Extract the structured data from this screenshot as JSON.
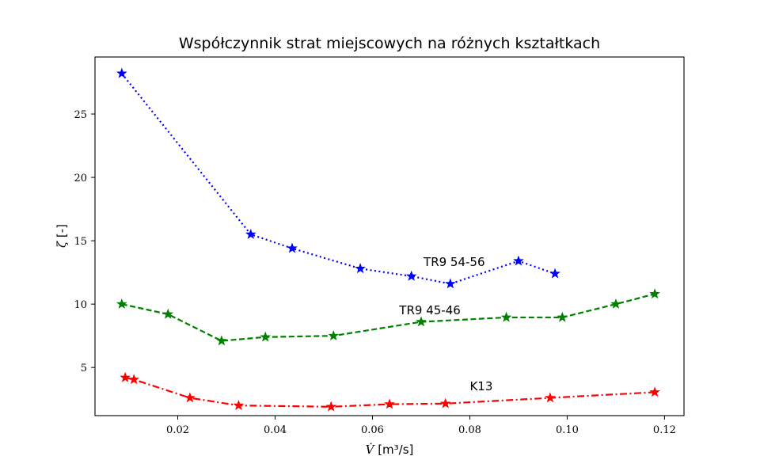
{
  "chart_data": {
    "type": "line",
    "title": "Współczynnik strat miejscowych na różnych kształtkach",
    "xlabel_symbol": "V̇",
    "xlabel_unit": "[m³/s]",
    "ylabel_symbol": "ζ",
    "ylabel_unit": "[-]",
    "xlim": [
      0.003,
      0.124
    ],
    "ylim": [
      1.2,
      29.5
    ],
    "xticks": [
      0.02,
      0.04,
      0.06,
      0.08,
      0.1,
      0.12
    ],
    "xtick_labels": [
      "0.02",
      "0.04",
      "0.06",
      "0.08",
      "0.10",
      "0.12"
    ],
    "yticks": [
      5,
      10,
      15,
      20,
      25
    ],
    "ytick_labels": [
      "5",
      "10",
      "15",
      "20",
      "25"
    ],
    "grid": false,
    "series": [
      {
        "name": "TR9 54-56",
        "color": "#0000ff",
        "linestyle": "dotted",
        "marker": "star",
        "x": [
          0.0085,
          0.035,
          0.0435,
          0.0575,
          0.068,
          0.076,
          0.09,
          0.0975
        ],
        "y": [
          28.2,
          15.5,
          14.4,
          12.8,
          12.2,
          11.6,
          13.4,
          12.4
        ],
        "label_at": [
          0.0705,
          13.0
        ]
      },
      {
        "name": "TR9 45-46",
        "color": "#008000",
        "linestyle": "dashed",
        "marker": "star",
        "x": [
          0.0085,
          0.018,
          0.029,
          0.038,
          0.052,
          0.07,
          0.0875,
          0.099,
          0.11,
          0.118
        ],
        "y": [
          10.0,
          9.2,
          7.1,
          7.4,
          7.5,
          8.6,
          8.95,
          8.95,
          10.0,
          10.8
        ],
        "label_at": [
          0.0655,
          9.2
        ]
      },
      {
        "name": "K13",
        "color": "#ff0000",
        "linestyle": "dashdot",
        "marker": "star",
        "x": [
          0.0092,
          0.011,
          0.0225,
          0.0325,
          0.0515,
          0.0635,
          0.075,
          0.0965,
          0.118
        ],
        "y": [
          4.2,
          4.05,
          2.6,
          2.0,
          1.9,
          2.1,
          2.15,
          2.6,
          3.05
        ],
        "label_at": [
          0.08,
          3.2
        ]
      }
    ]
  }
}
